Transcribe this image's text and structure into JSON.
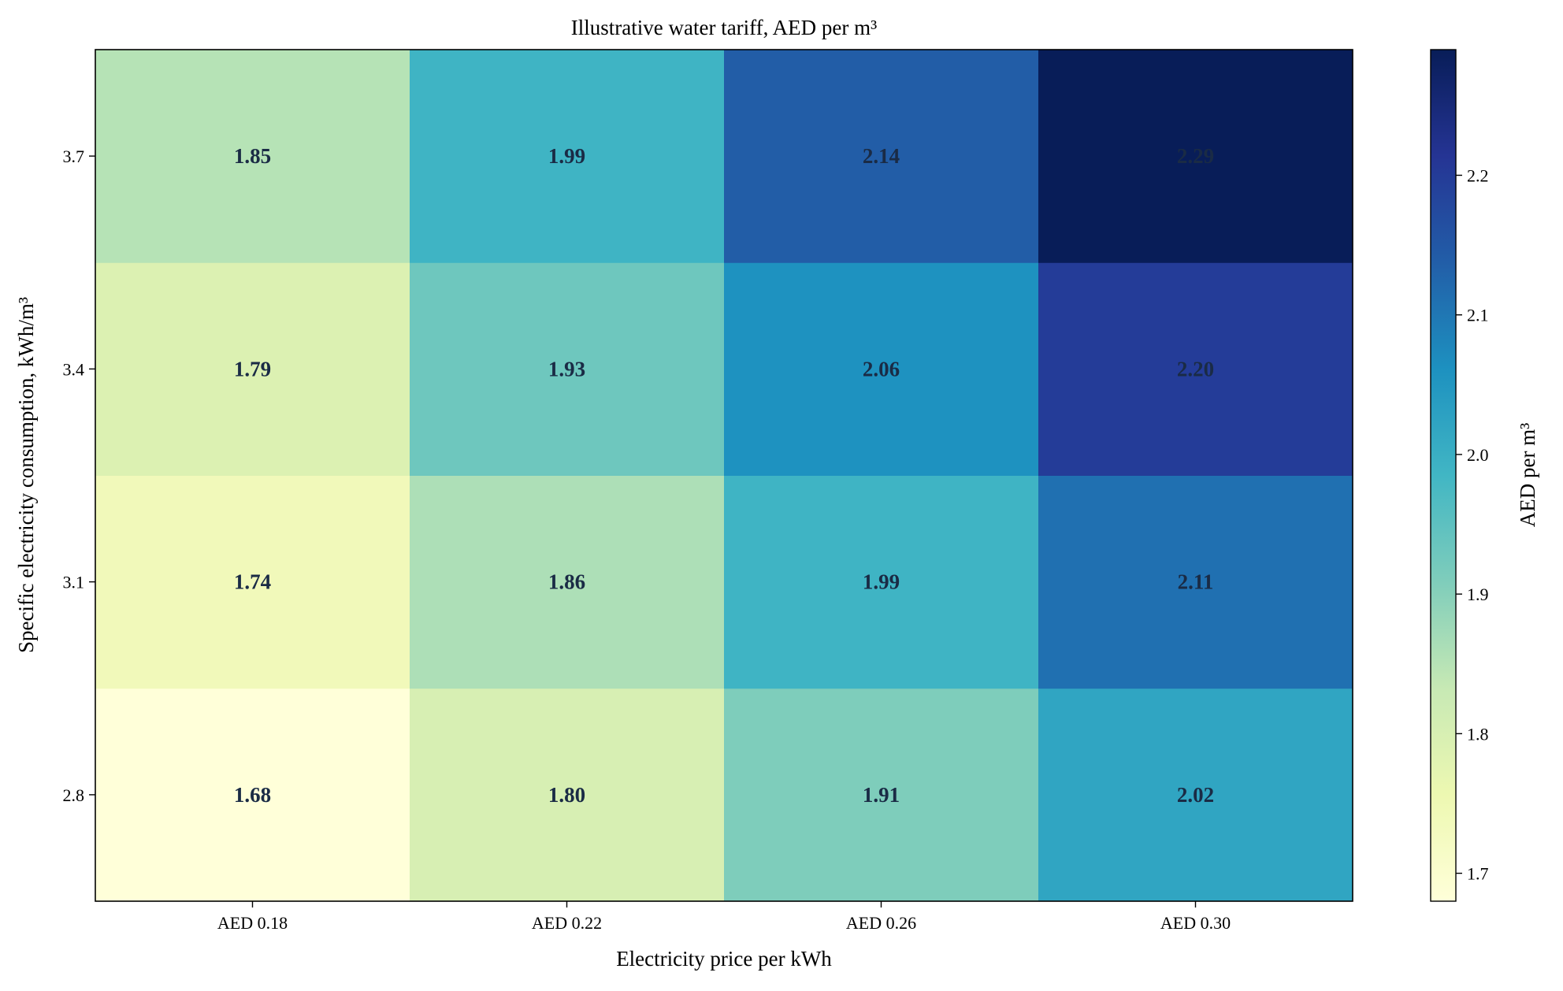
{
  "chart_data": {
    "type": "heatmap",
    "title": "Illustrative water tariff, AED per m³",
    "xlabel": "Electricity price per kWh",
    "ylabel": "Specific electricity consumption, kWh/m³",
    "x_categories": [
      "AED 0.18",
      "AED 0.22",
      "AED 0.26",
      "AED 0.30"
    ],
    "y_categories": [
      "2.8",
      "3.1",
      "3.4",
      "3.7"
    ],
    "values": [
      [
        1.68,
        1.8,
        1.91,
        2.02
      ],
      [
        1.74,
        1.86,
        1.99,
        2.11
      ],
      [
        1.79,
        1.93,
        2.06,
        2.2
      ],
      [
        1.85,
        1.99,
        2.14,
        2.29
      ]
    ],
    "value_labels": [
      [
        "1.68",
        "1.80",
        "1.91",
        "2.02"
      ],
      [
        "1.74",
        "1.86",
        "1.99",
        "2.11"
      ],
      [
        "1.79",
        "1.93",
        "2.06",
        "2.20"
      ],
      [
        "1.85",
        "1.99",
        "2.14",
        "2.29"
      ]
    ],
    "colorbar": {
      "label": "AED per m³",
      "range": [
        1.68,
        2.29
      ],
      "ticks": [
        "1.7",
        "1.8",
        "1.9",
        "2.0",
        "2.1",
        "2.2"
      ],
      "colormap": "YlGnBu"
    },
    "label_color": "#1a2b45"
  }
}
